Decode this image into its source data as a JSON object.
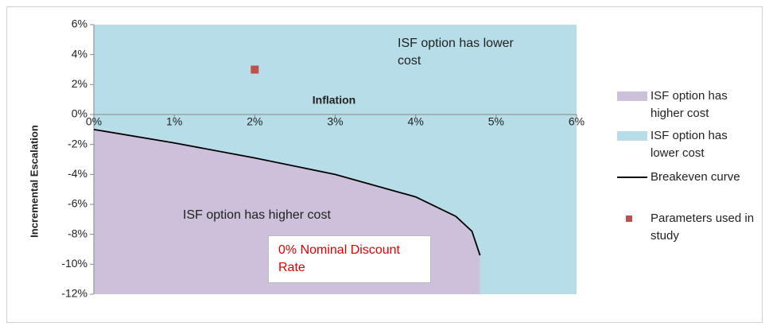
{
  "chart_data": {
    "type": "area",
    "x_label": "Inflation",
    "y_label": "Incremental Escalation",
    "xlim": [
      0,
      6
    ],
    "ylim": [
      -12,
      6
    ],
    "xticks": [
      {
        "value": 0,
        "label": "0%"
      },
      {
        "value": 1,
        "label": "1%"
      },
      {
        "value": 2,
        "label": "2%"
      },
      {
        "value": 3,
        "label": "3%"
      },
      {
        "value": 4,
        "label": "4%"
      },
      {
        "value": 5,
        "label": "5%"
      },
      {
        "value": 6,
        "label": "6%"
      }
    ],
    "yticks": [
      {
        "value": 6,
        "label": "6%"
      },
      {
        "value": 4,
        "label": "4%"
      },
      {
        "value": 2,
        "label": "2%"
      },
      {
        "value": 0,
        "label": "0%"
      },
      {
        "value": -2,
        "label": "-2%"
      },
      {
        "value": -4,
        "label": "-4%"
      },
      {
        "value": -6,
        "label": "-6%"
      },
      {
        "value": -8,
        "label": "-8%"
      },
      {
        "value": -10,
        "label": "-10%"
      },
      {
        "value": -12,
        "label": "-12%"
      }
    ],
    "series": [
      {
        "name": "ISF option has higher cost",
        "kind": "area",
        "color": "#ccc0da",
        "x": [
          0,
          1,
          2,
          3,
          4,
          4.5,
          4.7,
          4.8
        ],
        "values": [
          -1,
          -1.9,
          -2.9,
          -4,
          -5.5,
          -6.8,
          -7.8,
          -9.4
        ]
      },
      {
        "name": "ISF option has lower cost",
        "kind": "background",
        "color": "#b7dde8"
      },
      {
        "name": "Breakeven curve",
        "kind": "line",
        "color": "#000000",
        "x": [
          0,
          1,
          2,
          3,
          4,
          4.5,
          4.7,
          4.8
        ],
        "values": [
          -1,
          -1.9,
          -2.9,
          -4,
          -5.5,
          -6.8,
          -7.8,
          -9.4
        ]
      },
      {
        "name": "Parameters used in study",
        "kind": "scatter",
        "color": "#c0504d",
        "x": [
          2
        ],
        "values": [
          3
        ]
      }
    ],
    "annotations": [
      "ISF option has lower cost",
      "ISF option has higher cost",
      "0% Nominal Discount Rate"
    ]
  }
}
